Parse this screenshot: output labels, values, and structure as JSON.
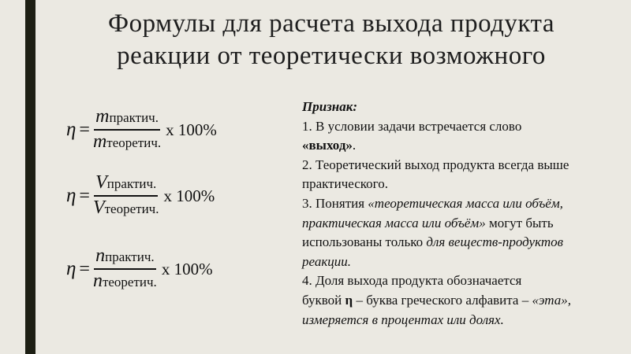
{
  "title": {
    "line1": "Формулы для расчета выхода продукта",
    "line2": "реакции от теоретически возможного"
  },
  "formulas": [
    {
      "lhs": "η",
      "eq": "=",
      "num_var": "m",
      "num_sub": "практич.",
      "den_var": "m",
      "den_sub": "теоретич.",
      "mult": "x 100%"
    },
    {
      "lhs": "η",
      "eq": "=",
      "num_var": "V",
      "num_sub": "практич.",
      "den_var": "V",
      "den_sub": "теоретич.",
      "mult": "x 100%"
    },
    {
      "lhs": "η",
      "eq": "=",
      "num_var": "n",
      "num_sub": "практич.",
      "den_var": "n",
      "den_sub": "теоретич.",
      "mult": "x 100%"
    }
  ],
  "signs": {
    "heading": "Признак:",
    "l1": "1. В условии задачи встречается слово",
    "l2": "«выход»",
    "l2b": ".",
    "l3": "2. Теоретический выход продукта всегда выше",
    "l4": "практического.",
    "l5a": "3. Понятия ",
    "l5b": "«теоретическая масса или объём,",
    "l6a": "практическая масса или объём»",
    "l6b": " могут быть",
    "l7a": "использованы только ",
    "l7b": "для веществ-продуктов",
    "l8": "реакции.",
    "l9": "4. Доля выхода продукта обозначается",
    "l10a": "буквой ",
    "l10b": "η",
    "l10c": " – буква греческого алфавита – ",
    "l10d": "«эта»,",
    "l11": "измеряется в процентах или долях."
  }
}
